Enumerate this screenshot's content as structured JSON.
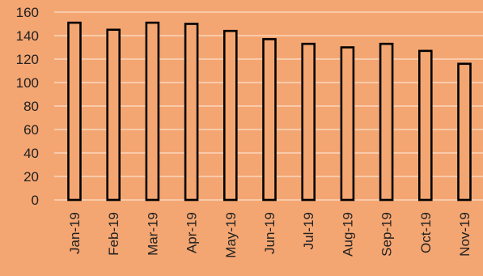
{
  "chart_data": {
    "type": "bar",
    "categories": [
      "Jan-19",
      "Feb-19",
      "Mar-19",
      "Apr-19",
      "May-19",
      "Jun-19",
      "Jul-19",
      "Aug-19",
      "Sep-19",
      "Oct-19",
      "Nov-19"
    ],
    "values": [
      151,
      145,
      151,
      150,
      144,
      137,
      133,
      130,
      133,
      127,
      116
    ],
    "y_ticks": [
      "0",
      "20",
      "40",
      "60",
      "80",
      "100",
      "120",
      "140",
      "160"
    ],
    "ylim": [
      0,
      160
    ],
    "grid": true,
    "legend": "none"
  },
  "colors": {
    "background": "#F4A672",
    "bar_fill": "#F4A672",
    "bar_edge": "#000000",
    "gridline": "#FBE0CC",
    "text": "#222222"
  }
}
